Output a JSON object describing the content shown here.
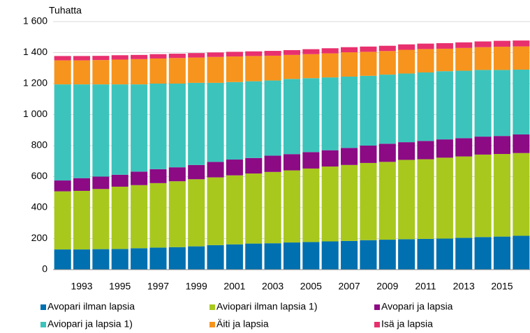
{
  "chart_data": {
    "type": "stacked_bar",
    "y_label": "Tuhatta",
    "categories": [
      null,
      "1993",
      null,
      "1995",
      null,
      "1997",
      null,
      "1999",
      null,
      "2001",
      null,
      "2003",
      null,
      "2005",
      null,
      "2007",
      null,
      "2009",
      null,
      "2011",
      null,
      "2013",
      null,
      "2015",
      null
    ],
    "series": [
      {
        "name": "Avopari ilman lapsia",
        "color": "#0070b0",
        "values": [
          130,
          130,
          132,
          133,
          138,
          142,
          145,
          150,
          158,
          163,
          168,
          170,
          175,
          178,
          182,
          185,
          190,
          193,
          196,
          198,
          200,
          205,
          210,
          213,
          218
        ]
      },
      {
        "name": "Aviopari ilman lapsia 1)",
        "color": "#a8c81e",
        "values": [
          375,
          378,
          388,
          402,
          407,
          416,
          425,
          433,
          437,
          445,
          452,
          460,
          465,
          474,
          483,
          490,
          498,
          502,
          512,
          514,
          522,
          525,
          532,
          533,
          534
        ]
      },
      {
        "name": "Avopari ja lapsia",
        "color": "#8c0a84",
        "values": [
          70,
          82,
          80,
          77,
          87,
          90,
          90,
          92,
          100,
          102,
          100,
          105,
          105,
          106,
          105,
          110,
          112,
          117,
          114,
          118,
          118,
          118,
          116,
          116,
          120
        ]
      },
      {
        "name": "Aviopari ja lapsia 1)",
        "color": "#3cc4bc",
        "values": [
          620,
          605,
          595,
          583,
          563,
          552,
          540,
          530,
          510,
          500,
          495,
          485,
          485,
          477,
          470,
          460,
          450,
          446,
          443,
          442,
          440,
          435,
          430,
          426,
          418
        ]
      },
      {
        "name": "Äiti ja lapsia",
        "color": "#f7941d",
        "values": [
          155,
          155,
          157,
          160,
          163,
          162,
          165,
          163,
          167,
          165,
          163,
          160,
          155,
          155,
          155,
          157,
          155,
          152,
          153,
          151,
          145,
          147,
          147,
          150,
          150
        ]
      },
      {
        "name": "Isä ja lapsia",
        "color": "#e8306e",
        "values": [
          28,
          28,
          27,
          28,
          27,
          28,
          28,
          29,
          29,
          30,
          30,
          31,
          31,
          32,
          33,
          33,
          34,
          34,
          35,
          35,
          36,
          36,
          37,
          38,
          38
        ]
      }
    ],
    "ylim": [
      0,
      1600
    ],
    "yticks": [
      0,
      200,
      400,
      600,
      800,
      {
        "value": 1000,
        "label": "1 000"
      },
      {
        "value": 1200,
        "label": "1 200"
      },
      {
        "value": 1400,
        "label": "1 400"
      },
      {
        "value": 1600,
        "label": "1 600"
      }
    ],
    "grid": true
  }
}
